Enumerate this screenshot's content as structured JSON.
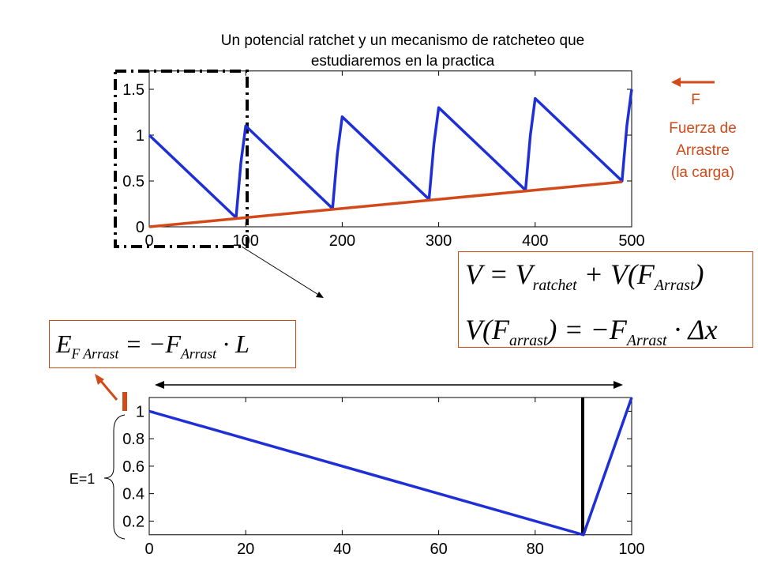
{
  "title_lines": [
    "Un potencial ratchet y un mecanismo de ratcheteo que",
    "estudiaremos en la practica"
  ],
  "force_label": "F",
  "force_caption": [
    "Fuerza de",
    "Arrastre",
    "(la carga)"
  ],
  "energy_label": "E=1",
  "equations": [
    {
      "parts": [
        "V = V",
        "ratchet",
        " + V(F",
        "Arrast",
        ")"
      ]
    },
    {
      "parts": [
        "V(F",
        "arrast",
        ") = −F",
        "Arrast",
        " · Δx"
      ]
    },
    {
      "parts": [
        "E",
        "F Arrast",
        " = −F",
        "Arrast",
        " · L"
      ]
    }
  ],
  "chart_data": [
    {
      "type": "line",
      "xlim": [
        0,
        500
      ],
      "ylim": [
        0,
        1.7
      ],
      "xticks": [
        0,
        100,
        200,
        300,
        400,
        500
      ],
      "yticks": [
        0,
        0.5,
        1,
        1.5
      ],
      "series": [
        {
          "color": "#1f2fd6",
          "x": [
            0,
            90,
            95,
            100,
            190,
            195,
            200,
            290,
            295,
            300,
            390,
            395,
            400,
            490,
            495,
            500
          ],
          "values": [
            1,
            0.1,
            0.7,
            1.1,
            0.2,
            0.8,
            1.2,
            0.3,
            0.9,
            1.3,
            0.4,
            1.0,
            1.4,
            0.5,
            1.1,
            1.5
          ]
        },
        {
          "color": "#d2491a",
          "x": [
            0,
            490
          ],
          "values": [
            0,
            0.49
          ]
        }
      ]
    },
    {
      "type": "line",
      "xlim": [
        0,
        100
      ],
      "ylim": [
        0.1,
        1.1
      ],
      "xticks": [
        0,
        20,
        40,
        60,
        80,
        100
      ],
      "yticks": [
        0.2,
        0.4,
        0.6,
        0.8,
        1
      ],
      "series": [
        {
          "color": "#1f2fd6",
          "x": [
            0,
            90,
            100
          ],
          "values": [
            1,
            0.1,
            1.1
          ]
        }
      ]
    }
  ]
}
